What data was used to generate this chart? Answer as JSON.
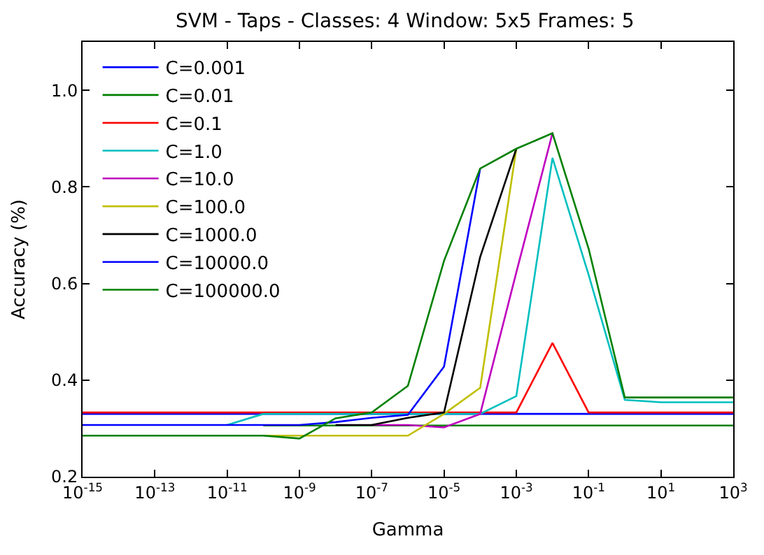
{
  "chart_data": {
    "type": "line",
    "title": "SVM - Taps - Classes: 4 Window: 5x5 Frames: 5",
    "xlabel": "Gamma",
    "ylabel": "Accuracy (%)",
    "x": [
      1e-15,
      1e-14,
      1e-13,
      1e-12,
      1e-11,
      1e-10,
      1e-09,
      1e-08,
      1e-07,
      1e-06,
      1e-05,
      0.0001,
      0.001,
      0.01,
      0.1,
      1,
      10,
      100,
      1000
    ],
    "log": "x",
    "xlim": [
      1e-15,
      1000
    ],
    "xticks": [
      {
        "value": 1e-15,
        "label": "10$^{-15}$"
      },
      {
        "value": 1e-13,
        "label": "10$^{-13}$"
      },
      {
        "value": 1e-11,
        "label": "10$^{-11}$"
      },
      {
        "value": 1e-09,
        "label": "10$^{-9}$"
      },
      {
        "value": 1e-07,
        "label": "10$^{-7}$"
      },
      {
        "value": 1e-05,
        "label": "10$^{-5}$"
      },
      {
        "value": 0.001,
        "label": "10$^{-3}$"
      },
      {
        "value": 0.1,
        "label": "10$^{-1}$"
      },
      {
        "value": 10,
        "label": "10$^{1}$"
      },
      {
        "value": 1000,
        "label": "10$^{3}$"
      }
    ],
    "ylim": [
      0.2,
      1.1
    ],
    "yticks": [
      {
        "value": 0.2,
        "label": "0.2"
      },
      {
        "value": 0.4,
        "label": "0.4"
      },
      {
        "value": 0.6,
        "label": "0.6"
      },
      {
        "value": 0.8,
        "label": "0.8"
      },
      {
        "value": 1.0,
        "label": "1.0"
      }
    ],
    "legend": "top left",
    "series": [
      {
        "name": "C=0.001",
        "color": "#0000ff",
        "values": [
          0.33,
          0.33,
          0.33,
          0.33,
          0.33,
          0.33,
          0.33,
          0.33,
          0.33,
          0.33,
          0.33,
          0.33,
          0.33,
          0.33,
          0.33,
          0.33,
          0.33,
          0.33,
          0.33
        ]
      },
      {
        "name": "C=0.01",
        "color": "#008000",
        "values": [
          null,
          null,
          null,
          null,
          null,
          0.306,
          0.306,
          0.306,
          0.306,
          0.306,
          0.306,
          0.306,
          0.306,
          0.306,
          0.306,
          0.306,
          0.306,
          0.306,
          0.306
        ]
      },
      {
        "name": "C=0.1",
        "color": "#ff0000",
        "values": [
          0.333,
          0.333,
          0.333,
          0.333,
          0.333,
          0.333,
          0.333,
          0.333,
          0.333,
          0.333,
          0.333,
          0.333,
          0.333,
          0.477,
          0.333,
          0.333,
          0.333,
          0.333,
          0.333
        ]
      },
      {
        "name": "C=1.0",
        "color": "#00bfbf",
        "values": [
          null,
          null,
          null,
          null,
          0.307,
          0.33,
          0.33,
          0.33,
          0.33,
          0.33,
          0.33,
          0.33,
          0.367,
          0.86,
          0.618,
          0.359,
          0.354,
          0.354,
          0.354
        ]
      },
      {
        "name": "C=10.0",
        "color": "#bf00bf",
        "values": [
          null,
          null,
          null,
          null,
          null,
          null,
          null,
          null,
          0.307,
          0.307,
          0.302,
          0.33,
          0.623,
          0.911,
          null,
          null,
          null,
          null,
          null
        ]
      },
      {
        "name": "C=100.0",
        "color": "#bfbf00",
        "values": [
          null,
          null,
          null,
          null,
          null,
          0.285,
          0.285,
          0.285,
          0.285,
          0.285,
          0.33,
          0.384,
          0.879,
          null,
          null,
          null,
          null,
          null,
          null
        ]
      },
      {
        "name": "C=1000.0",
        "color": "#000000",
        "values": [
          null,
          null,
          null,
          null,
          null,
          null,
          null,
          0.307,
          0.307,
          0.322,
          0.333,
          0.655,
          0.879,
          null,
          null,
          null,
          null,
          null,
          null
        ]
      },
      {
        "name": "C=10000.0",
        "color": "#0000ff",
        "values": [
          0.307,
          0.307,
          0.307,
          0.307,
          0.307,
          0.307,
          0.307,
          0.313,
          0.322,
          0.328,
          0.428,
          0.838,
          null,
          null,
          null,
          null,
          null,
          null,
          null
        ]
      },
      {
        "name": "C=100000.0",
        "color": "#008000",
        "values": [
          0.285,
          0.285,
          0.285,
          0.285,
          0.285,
          0.285,
          0.279,
          0.321,
          0.333,
          0.388,
          0.647,
          0.838,
          0.879,
          0.911,
          0.672,
          0.364,
          0.364,
          0.364,
          0.364
        ]
      }
    ]
  }
}
